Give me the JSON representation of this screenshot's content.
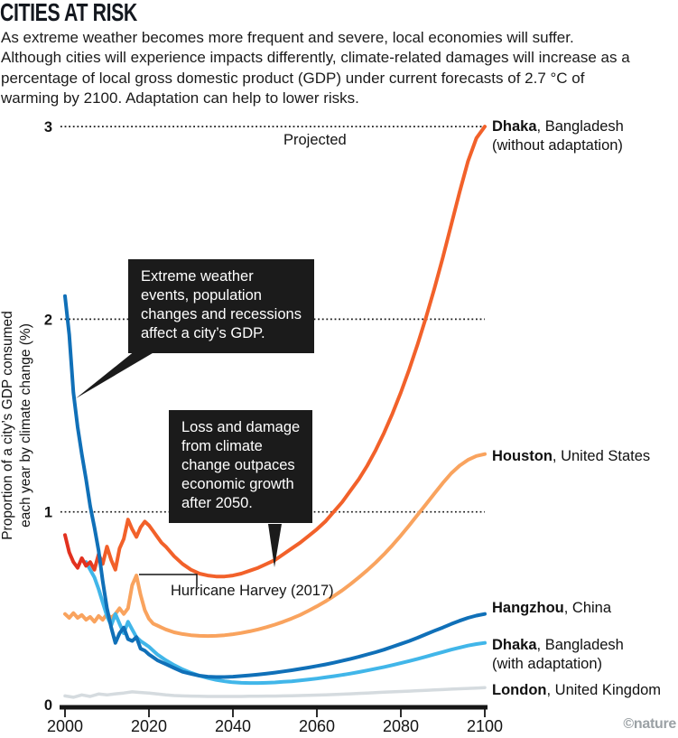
{
  "header": {
    "title": "CITIES AT RISK",
    "standfirst": "As extreme weather becomes more frequent and severe, local economies will suffer. Although cities will experience impacts differently, climate-related damages will increase as a percentage of local gross domestic product (GDP) under current forecasts of 2.7 °C of warming by 2100. Adaptation can help to lower risks."
  },
  "annotations": {
    "callout1": "Extreme weather\nevents, population\nchanges and recessions\naffect a city’s GDP.",
    "callout2": "Loss and damage\nfrom climate\nchange outpaces\neconomic growth\nafter 2050.",
    "harvey": "Hurricane Harvey (2017)"
  },
  "footer": {
    "credit": "©nature"
  },
  "chart_data": {
    "type": "line",
    "title": "CITIES AT RISK",
    "projected_label": "Projected",
    "ylabel_line1": "Proportion of a city’s GDP consumed",
    "ylabel_line2": "each year by climate change (%)",
    "xlim": [
      2000,
      2100
    ],
    "ylim": [
      0,
      3
    ],
    "xticks": [
      2000,
      2020,
      2040,
      2060,
      2080,
      2100
    ],
    "yticks": [
      0,
      1,
      2,
      3
    ],
    "grid": "horizontal dotted lines at 1, 2 and 3",
    "legend_position": "right of line endpoints",
    "colors": {
      "dhaka_without_start": "#e2311f",
      "dhaka_without": "#f2612a",
      "houston": "#f9a35e",
      "hangzhou": "#1070b8",
      "dhaka_with": "#41b6e9",
      "london": "#d5dbdf",
      "grid": "#1a1a1a",
      "axis": "#161616",
      "callout_bg": "#1b1b1b",
      "credit": "#9ba1a5"
    },
    "series": [
      {
        "name": "London, United Kingdom",
        "label_bold": "London",
        "label_rest": ", United Kingdom",
        "label_line2": "",
        "color_key": "london",
        "x": [
          2000,
          2002,
          2004,
          2006,
          2008,
          2010,
          2012,
          2014,
          2016,
          2018,
          2020,
          2022,
          2024,
          2026,
          2028,
          2030,
          2032,
          2034,
          2036,
          2038,
          2040,
          2042,
          2044,
          2046,
          2048,
          2050,
          2052,
          2054,
          2056,
          2058,
          2060,
          2062,
          2064,
          2066,
          2068,
          2070,
          2072,
          2074,
          2076,
          2078,
          2080,
          2082,
          2084,
          2086,
          2088,
          2090,
          2092,
          2094,
          2096,
          2098,
          2100
        ],
        "v": [
          0.045,
          0.038,
          0.05,
          0.042,
          0.055,
          0.05,
          0.056,
          0.06,
          0.066,
          0.063,
          0.06,
          0.055,
          0.05,
          0.047,
          0.045,
          0.044,
          0.043,
          0.042,
          0.042,
          0.042,
          0.042,
          0.042,
          0.043,
          0.043,
          0.044,
          0.044,
          0.045,
          0.046,
          0.047,
          0.048,
          0.049,
          0.05,
          0.052,
          0.054,
          0.056,
          0.058,
          0.06,
          0.062,
          0.064,
          0.066,
          0.068,
          0.07,
          0.072,
          0.074,
          0.076,
          0.078,
          0.08,
          0.082,
          0.084,
          0.086,
          0.088
        ]
      },
      {
        "name": "Houston, United States",
        "label_bold": "Houston",
        "label_rest": ", United States",
        "label_line2": "",
        "color_key": "houston",
        "x": [
          2000,
          2001,
          2002,
          2003,
          2004,
          2005,
          2006,
          2007,
          2008,
          2009,
          2010,
          2011,
          2012,
          2013,
          2014,
          2015,
          2016,
          2017,
          2018,
          2019,
          2020,
          2021,
          2022,
          2023,
          2024,
          2026,
          2028,
          2030,
          2032,
          2034,
          2036,
          2038,
          2040,
          2042,
          2044,
          2046,
          2048,
          2050,
          2052,
          2054,
          2056,
          2058,
          2060,
          2062,
          2064,
          2066,
          2068,
          2070,
          2072,
          2074,
          2076,
          2078,
          2080,
          2082,
          2084,
          2086,
          2088,
          2090,
          2092,
          2094,
          2096,
          2098,
          2100
        ],
        "v": [
          0.47,
          0.45,
          0.475,
          0.45,
          0.465,
          0.44,
          0.455,
          0.43,
          0.46,
          0.44,
          0.47,
          0.45,
          0.47,
          0.5,
          0.47,
          0.5,
          0.62,
          0.67,
          0.57,
          0.49,
          0.445,
          0.42,
          0.41,
          0.4,
          0.39,
          0.375,
          0.366,
          0.36,
          0.357,
          0.356,
          0.357,
          0.36,
          0.365,
          0.372,
          0.38,
          0.39,
          0.402,
          0.415,
          0.43,
          0.447,
          0.465,
          0.487,
          0.51,
          0.535,
          0.563,
          0.592,
          0.625,
          0.66,
          0.697,
          0.737,
          0.78,
          0.827,
          0.877,
          0.93,
          0.985,
          1.04,
          1.095,
          1.15,
          1.2,
          1.24,
          1.27,
          1.29,
          1.3
        ]
      },
      {
        "name": "Dhaka, Bangladesh (with adaptation)",
        "label_bold": "Dhaka",
        "label_rest": ", Bangladesh",
        "label_line2": "(with adaptation)",
        "color_key": "dhaka_with",
        "x": [
          2005,
          2006,
          2007,
          2008,
          2009,
          2010,
          2011,
          2012,
          2013,
          2014,
          2015,
          2016,
          2017,
          2018,
          2019,
          2020,
          2021,
          2022,
          2023,
          2024,
          2026,
          2028,
          2030,
          2032,
          2034,
          2036,
          2038,
          2040,
          2042,
          2044,
          2046,
          2048,
          2050,
          2052,
          2054,
          2056,
          2058,
          2060,
          2062,
          2064,
          2066,
          2068,
          2070,
          2072,
          2074,
          2076,
          2078,
          2080,
          2082,
          2084,
          2086,
          2088,
          2090,
          2092,
          2094,
          2096,
          2098,
          2100
        ],
        "v": [
          0.74,
          0.7,
          0.66,
          0.6,
          0.53,
          0.46,
          0.41,
          0.47,
          0.42,
          0.37,
          0.43,
          0.39,
          0.35,
          0.33,
          0.315,
          0.3,
          0.28,
          0.26,
          0.245,
          0.23,
          0.205,
          0.183,
          0.165,
          0.15,
          0.138,
          0.128,
          0.121,
          0.116,
          0.113,
          0.112,
          0.112,
          0.113,
          0.115,
          0.118,
          0.121,
          0.125,
          0.13,
          0.135,
          0.141,
          0.147,
          0.154,
          0.161,
          0.169,
          0.177,
          0.186,
          0.195,
          0.205,
          0.215,
          0.226,
          0.237,
          0.249,
          0.261,
          0.273,
          0.285,
          0.296,
          0.306,
          0.314,
          0.32
        ]
      },
      {
        "name": "Dhaka, Bangladesh (without adaptation)",
        "label_bold": "Dhaka",
        "label_rest": ", Bangladesh",
        "label_line2": "(without adaptation)",
        "color_key": "dhaka_without",
        "x": [
          2000,
          2001,
          2002,
          2003,
          2004,
          2005,
          2006,
          2007,
          2008,
          2009,
          2010,
          2011,
          2012,
          2013,
          2014,
          2015,
          2016,
          2017,
          2018,
          2019,
          2020,
          2021,
          2022,
          2023,
          2024,
          2026,
          2028,
          2030,
          2032,
          2034,
          2036,
          2038,
          2040,
          2042,
          2044,
          2046,
          2048,
          2050,
          2052,
          2054,
          2056,
          2058,
          2060,
          2062,
          2064,
          2066,
          2068,
          2070,
          2072,
          2074,
          2076,
          2078,
          2080,
          2082,
          2084,
          2086,
          2088,
          2090,
          2092,
          2094,
          2096,
          2098,
          2100
        ],
        "v": [
          0.88,
          0.79,
          0.74,
          0.71,
          0.76,
          0.72,
          0.74,
          0.7,
          0.78,
          0.73,
          0.82,
          0.75,
          0.7,
          0.81,
          0.86,
          0.96,
          0.91,
          0.87,
          0.92,
          0.95,
          0.93,
          0.9,
          0.87,
          0.84,
          0.82,
          0.77,
          0.73,
          0.7,
          0.68,
          0.67,
          0.665,
          0.665,
          0.67,
          0.68,
          0.695,
          0.71,
          0.73,
          0.75,
          0.78,
          0.81,
          0.84,
          0.875,
          0.91,
          0.95,
          1.0,
          1.05,
          1.11,
          1.17,
          1.24,
          1.32,
          1.41,
          1.51,
          1.62,
          1.74,
          1.87,
          2.01,
          2.16,
          2.32,
          2.49,
          2.66,
          2.82,
          2.94,
          3.0
        ]
      },
      {
        "name": "Hangzhou, China",
        "label_bold": "Hangzhou",
        "label_rest": ", China",
        "label_line2": "",
        "color_key": "hangzhou",
        "x": [
          2000,
          2001,
          2002,
          2003,
          2004,
          2005,
          2006,
          2007,
          2008,
          2009,
          2010,
          2011,
          2012,
          2013,
          2014,
          2015,
          2016,
          2017,
          2018,
          2019,
          2020,
          2021,
          2022,
          2023,
          2024,
          2026,
          2028,
          2030,
          2032,
          2034,
          2036,
          2038,
          2040,
          2042,
          2044,
          2046,
          2048,
          2050,
          2052,
          2054,
          2056,
          2058,
          2060,
          2062,
          2064,
          2066,
          2068,
          2070,
          2072,
          2074,
          2076,
          2078,
          2080,
          2082,
          2084,
          2086,
          2088,
          2090,
          2092,
          2094,
          2096,
          2098,
          2100
        ],
        "v": [
          2.12,
          1.92,
          1.62,
          1.44,
          1.3,
          1.17,
          1.03,
          0.92,
          0.8,
          0.64,
          0.5,
          0.4,
          0.32,
          0.37,
          0.4,
          0.34,
          0.33,
          0.35,
          0.29,
          0.28,
          0.26,
          0.245,
          0.23,
          0.22,
          0.21,
          0.19,
          0.17,
          0.16,
          0.15,
          0.145,
          0.143,
          0.143,
          0.145,
          0.148,
          0.152,
          0.156,
          0.161,
          0.166,
          0.172,
          0.178,
          0.185,
          0.192,
          0.2,
          0.208,
          0.217,
          0.227,
          0.237,
          0.248,
          0.26,
          0.272,
          0.285,
          0.3,
          0.315,
          0.33,
          0.347,
          0.365,
          0.383,
          0.4,
          0.418,
          0.435,
          0.45,
          0.462,
          0.47
        ]
      }
    ]
  }
}
